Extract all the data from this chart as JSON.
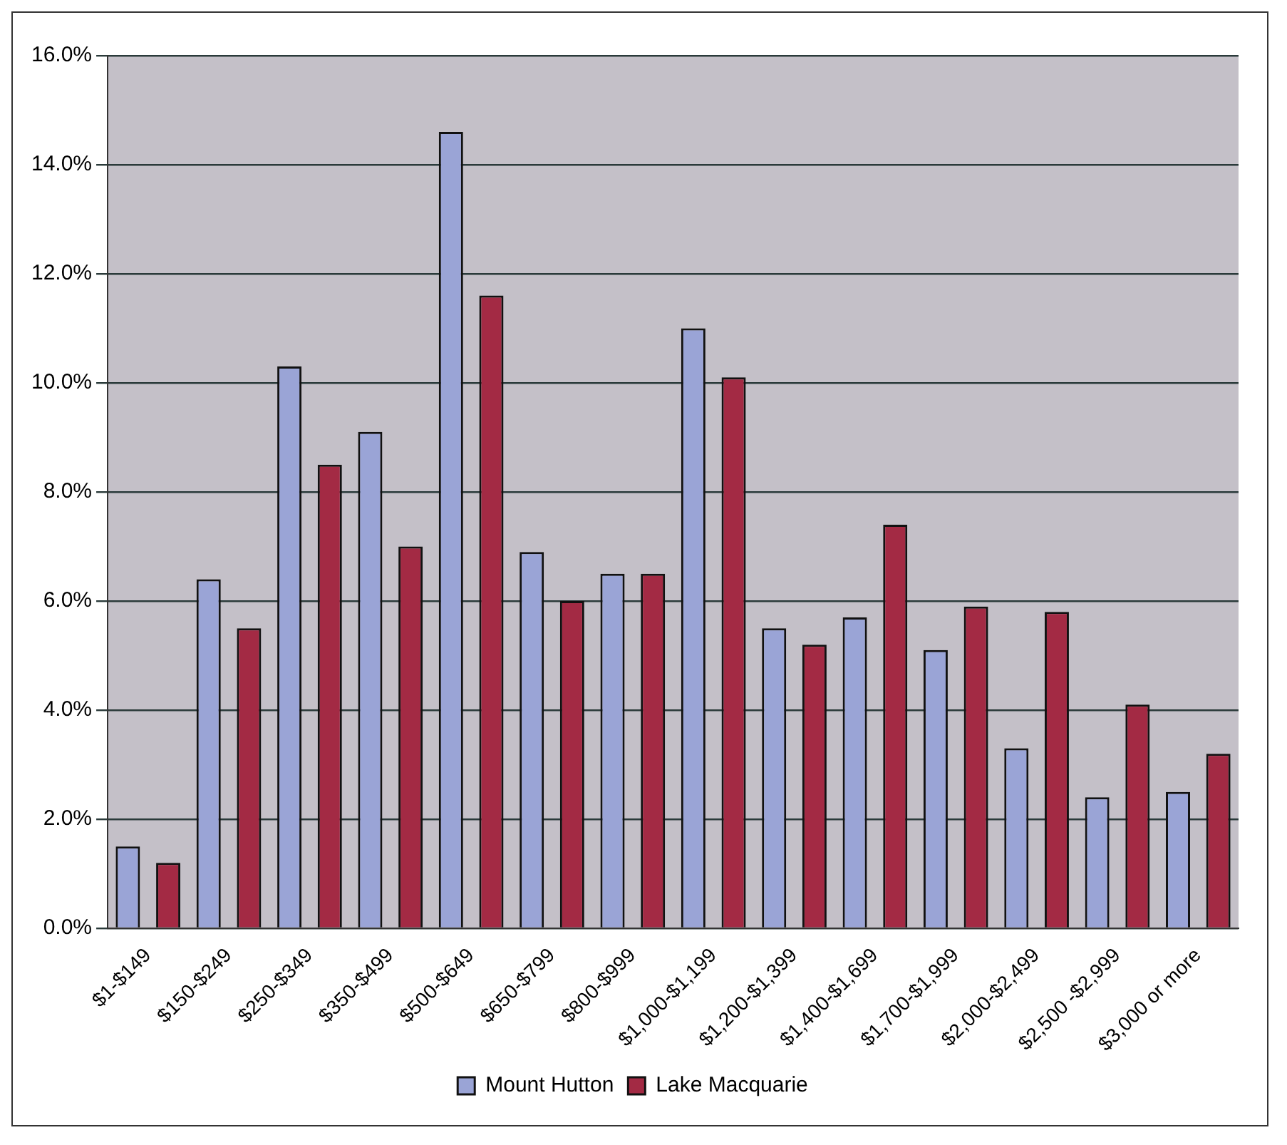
{
  "chart_data": {
    "type": "bar",
    "categories": [
      "$1-$149",
      "$150-$249",
      "$250-$349",
      "$350-$499",
      "$500-$649",
      "$650-$799",
      "$800-$999",
      "$1,000-$1,199",
      "$1,200-$1,399",
      "$1,400-$1,699",
      "$1,700-$1,999",
      "$2,000-$2,499",
      "$2,500 -$2,999",
      "$3,000 or more"
    ],
    "series": [
      {
        "name": "Mount Hutton",
        "color": "#9aa4d6",
        "values": [
          1.5,
          6.4,
          10.3,
          9.1,
          14.6,
          6.9,
          6.5,
          11.0,
          5.5,
          5.7,
          5.1,
          3.3,
          2.4,
          2.5
        ]
      },
      {
        "name": "Lake Macquarie",
        "color": "#a32a44",
        "values": [
          1.2,
          5.5,
          8.5,
          7.0,
          11.6,
          6.0,
          6.5,
          10.1,
          5.2,
          7.4,
          5.9,
          5.8,
          4.1,
          3.2
        ]
      }
    ],
    "ylim": [
      0,
      16
    ],
    "yticks": [
      {
        "value": 0,
        "label": "0.0%"
      },
      {
        "value": 2,
        "label": "2.0%"
      },
      {
        "value": 4,
        "label": "4.0%"
      },
      {
        "value": 6,
        "label": "6.0%"
      },
      {
        "value": 8,
        "label": "8.0%"
      },
      {
        "value": 10,
        "label": "10.0%"
      },
      {
        "value": 12,
        "label": "12.0%"
      },
      {
        "value": 14,
        "label": "14.0%"
      },
      {
        "value": 16,
        "label": "16.0%"
      }
    ],
    "grid": "y",
    "legend": "bottom"
  }
}
